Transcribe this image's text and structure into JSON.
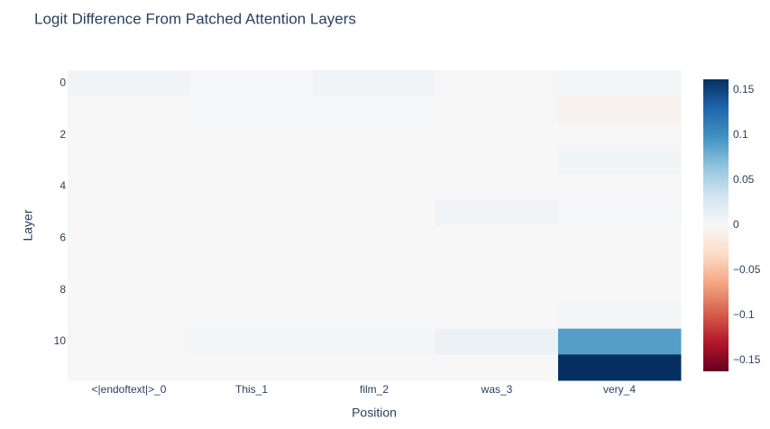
{
  "chart_data": {
    "type": "heatmap",
    "title": "Logit Difference From Patched Attention Layers",
    "xlabel": "Position",
    "ylabel": "Layer",
    "categories": [
      "<|endoftext|>_0",
      "This_1",
      "film_2",
      "was_3",
      "very_4"
    ],
    "ylim": [
      -0.5,
      11.5
    ],
    "yticks": [
      0,
      2,
      4,
      6,
      8,
      10
    ],
    "yreversed": true,
    "z": [
      [
        0.005,
        0.002,
        0.006,
        0.001,
        0.003
      ],
      [
        0,
        0.002,
        0.002,
        0.001,
        -0.006
      ],
      [
        0,
        0,
        0,
        0,
        0.001
      ],
      [
        0,
        0,
        0,
        0,
        0.004
      ],
      [
        0,
        0,
        0,
        0,
        0.001
      ],
      [
        0,
        0,
        0,
        0.005,
        0.002
      ],
      [
        0,
        0,
        0,
        0,
        0
      ],
      [
        0,
        0,
        0,
        0,
        0
      ],
      [
        0,
        0,
        0,
        0,
        0
      ],
      [
        0,
        0,
        0,
        0,
        0.003
      ],
      [
        0.001,
        0.003,
        0.003,
        0.01,
        0.09
      ],
      [
        0,
        0,
        0,
        0,
        0.162
      ]
    ],
    "zlim": [
      -0.162,
      0.162
    ],
    "zticks": [
      {
        "value": -0.15,
        "label": "−0.15"
      },
      {
        "value": -0.1,
        "label": "−0.1"
      },
      {
        "value": -0.05,
        "label": "−0.05"
      },
      0,
      0.05,
      0.1,
      0.15
    ],
    "colorscale": [
      "#67001f",
      "#b2182b",
      "#d6604d",
      "#f4a582",
      "#fddbc7",
      "#f7f7f7",
      "#d1e5f0",
      "#92c5de",
      "#4393c3",
      "#2166ac",
      "#053061"
    ]
  }
}
